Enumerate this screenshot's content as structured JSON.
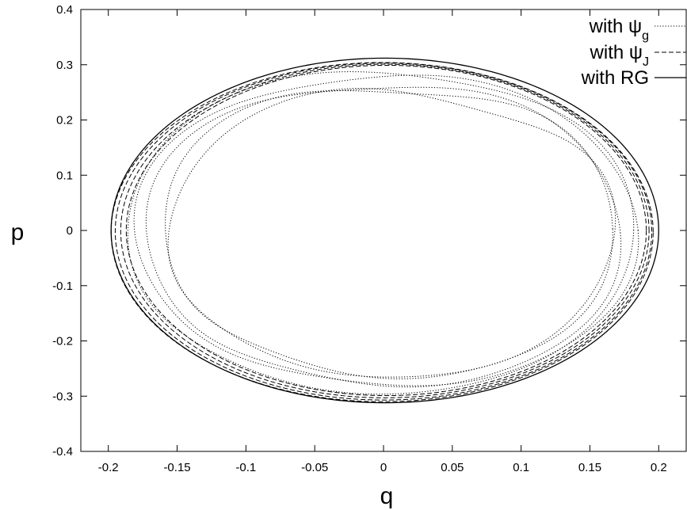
{
  "chart_data": {
    "type": "line",
    "title": "",
    "xlabel": "q",
    "ylabel": "p",
    "xlim": [
      -0.22,
      0.22
    ],
    "ylim": [
      -0.4,
      0.4
    ],
    "x_ticks": [
      "-0.2",
      "-0.15",
      "-0.1",
      "-0.05",
      "0",
      "0.05",
      "0.1",
      "0.15",
      "0.2"
    ],
    "y_ticks": [
      "0.4",
      "0.3",
      "0.2",
      "0.1",
      "0",
      "-0.1",
      "-0.2",
      "-0.3",
      "-0.4"
    ],
    "x_tick_values": [
      -0.2,
      -0.15,
      -0.1,
      -0.05,
      0,
      0.05,
      0.1,
      0.15,
      0.2
    ],
    "y_tick_values": [
      0.4,
      0.3,
      0.2,
      0.1,
      0,
      -0.1,
      -0.2,
      -0.3,
      -0.4
    ],
    "grid": false,
    "legend_position": "top-right",
    "legend": [
      {
        "prefix": "with",
        "symbol": "ψ",
        "subscript": "g",
        "style": "dotted"
      },
      {
        "prefix": "with",
        "symbol": "ψ",
        "subscript": "J",
        "style": "dashed"
      },
      {
        "prefix": "with",
        "symbol": "RG",
        "subscript": "",
        "style": "solid"
      }
    ],
    "series": [
      {
        "style": "dotted",
        "orbits": [
          {
            "cx": 0.002,
            "cy": 0.0,
            "a": 0.183,
            "b": 0.295,
            "phase": 0.0,
            "amp": 0.09
          },
          {
            "cx": 0.0,
            "cy": -0.005,
            "a": 0.176,
            "b": 0.288,
            "phase": 0.6,
            "amp": 0.11
          },
          {
            "cx": 0.004,
            "cy": 0.003,
            "a": 0.17,
            "b": 0.278,
            "phase": 1.3,
            "amp": 0.13
          },
          {
            "cx": -0.002,
            "cy": 0.0,
            "a": 0.188,
            "b": 0.3,
            "phase": 2.0,
            "amp": 0.07
          },
          {
            "cx": 0.006,
            "cy": -0.003,
            "a": 0.165,
            "b": 0.27,
            "phase": 2.7,
            "amp": 0.12
          }
        ],
        "range_q": [
          -0.172,
          0.192
        ],
        "range_p": [
          -0.317,
          0.31
        ]
      },
      {
        "style": "dashed",
        "orbits": [
          {
            "cx": 0.0,
            "cy": -0.002,
            "a": 0.195,
            "b": 0.305,
            "phase": 0.0,
            "amp": 0.0
          },
          {
            "cx": 0.001,
            "cy": -0.001,
            "a": 0.192,
            "b": 0.302,
            "phase": 0.0,
            "amp": 0.0
          },
          {
            "cx": 0.002,
            "cy": 0.0,
            "a": 0.189,
            "b": 0.299,
            "phase": 0.0,
            "amp": 0.0
          },
          {
            "cx": -0.001,
            "cy": -0.003,
            "a": 0.197,
            "b": 0.307,
            "phase": 0.0,
            "amp": 0.0
          }
        ],
        "range_q": [
          -0.197,
          0.197
        ],
        "range_p": [
          -0.311,
          0.307
        ]
      },
      {
        "style": "solid",
        "orbits": [
          {
            "cx": 0.001,
            "cy": 0.0,
            "a": 0.199,
            "b": 0.312,
            "phase": 0.0,
            "amp": 0.0
          }
        ],
        "range_q": [
          -0.198,
          0.2
        ],
        "range_p": [
          -0.312,
          0.312
        ]
      }
    ]
  }
}
